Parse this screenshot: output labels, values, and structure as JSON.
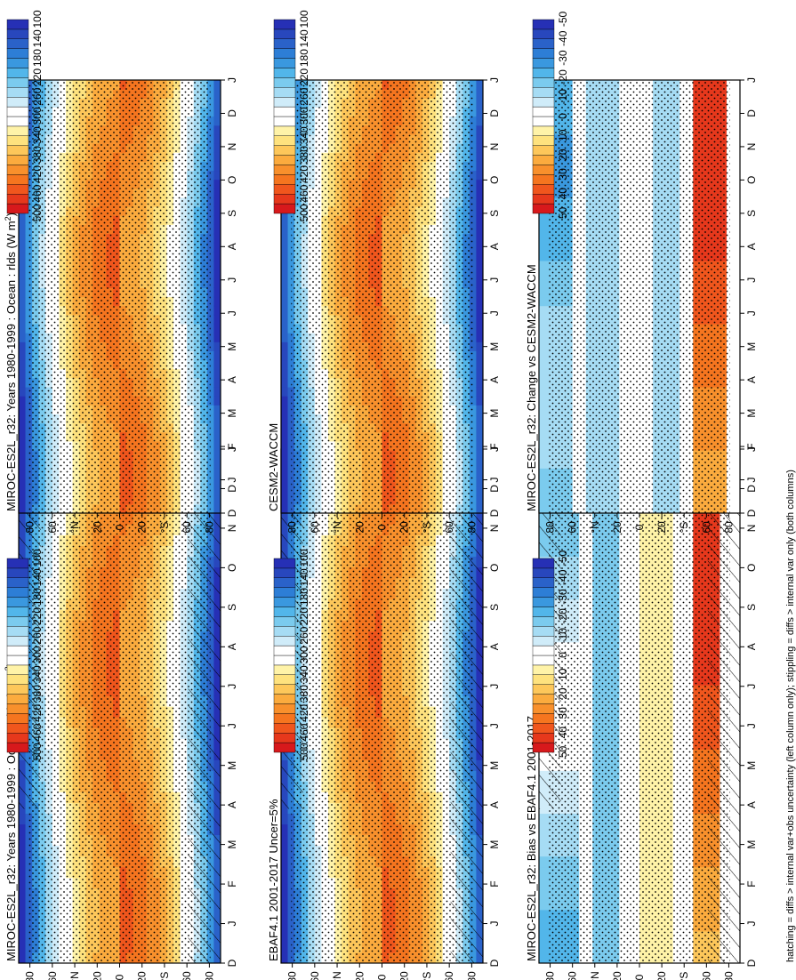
{
  "footnote": "hatching = diffs > internal var+obs uncertainty (left column only); stippling = diffs > internal var only (both columns)",
  "months": [
    "D",
    "J",
    "F",
    "M",
    "A",
    "M",
    "J",
    "J",
    "A",
    "S",
    "O",
    "N",
    "D",
    "J"
  ],
  "lat_ticks": [
    "80",
    "60",
    "°N",
    "20",
    "0",
    "20",
    "°S",
    "60",
    "80"
  ],
  "colorbars": {
    "absolute": {
      "labels": [
        "500",
        "460",
        "420",
        "380",
        "340",
        "300",
        "260",
        "220",
        "180",
        "140",
        "100"
      ],
      "colors": [
        "#d7191c",
        "#e6381c",
        "#f0561d",
        "#f5751f",
        "#f8902c",
        "#fbab3e",
        "#fdc75a",
        "#fee27e",
        "#fff3a8",
        "#ffffff",
        "#ffffff",
        "#d0ecf9",
        "#a6dcf4",
        "#7bcbee",
        "#52b6ea",
        "#3a98df",
        "#2d7ed6",
        "#2a62c9",
        "#2847bd",
        "#2630b5"
      ]
    },
    "diff": {
      "labels": [
        "50",
        "40",
        "30",
        "20",
        "10",
        "0",
        "-10",
        "-20",
        "-30",
        "-40",
        "-50"
      ],
      "colors": [
        "#d7191c",
        "#e6381c",
        "#f0561d",
        "#f5751f",
        "#f8902c",
        "#fbab3e",
        "#fdc75a",
        "#fee27e",
        "#fff3a8",
        "#ffffff",
        "#ffffff",
        "#d0ecf9",
        "#a6dcf4",
        "#7bcbee",
        "#52b6ea",
        "#3a98df",
        "#2d7ed6",
        "#2a62c9",
        "#2847bd",
        "#2630b5"
      ]
    }
  },
  "chart_data": [
    {
      "type": "heatmap",
      "id": "p11",
      "title_pre": "MIROC-ES2L_r32: Years 1980-1999 : Ocean : rlds (W m",
      "title_sup": "2",
      "title_post": ")",
      "x": "month (D..J)",
      "y": "latitude (-90..90)",
      "colorbar": "absolute",
      "range": [
        100,
        500
      ],
      "hatching": true,
      "stippling": true
    },
    {
      "type": "heatmap",
      "id": "p12",
      "title_pre": "MIROC-ES2L_r32: Years 1980-1999 : Ocean : rlds (W m",
      "title_sup": "2",
      "title_post": ")",
      "colorbar": "absolute",
      "range": [
        100,
        500
      ],
      "hatching": false,
      "stippling": true
    },
    {
      "type": "heatmap",
      "id": "p21",
      "title_pre": "EBAF4.1 2001-2017 Uncer=5%",
      "title_sup": "",
      "title_post": "",
      "colorbar": "absolute",
      "range": [
        100,
        500
      ],
      "hatching": true,
      "stippling": true
    },
    {
      "type": "heatmap",
      "id": "p22",
      "title_pre": "CESM2-WACCM",
      "title_sup": "",
      "title_post": "",
      "colorbar": "absolute",
      "range": [
        100,
        500
      ],
      "hatching": false,
      "stippling": true
    },
    {
      "type": "heatmap",
      "id": "p31",
      "title_pre": "MIROC-ES2L_r32: Bias vs EBAF4.1 2001-2017",
      "title_sup": "",
      "title_post": "",
      "colorbar": "diff",
      "range": [
        -50,
        50
      ],
      "hatching": true,
      "stippling": true
    },
    {
      "type": "heatmap",
      "id": "p32",
      "title_pre": "MIROC-ES2L_r32: Change vs CESM2-WACCM",
      "title_sup": "",
      "title_post": "",
      "colorbar": "diff",
      "range": [
        -50,
        50
      ],
      "hatching": false,
      "stippling": true
    }
  ]
}
